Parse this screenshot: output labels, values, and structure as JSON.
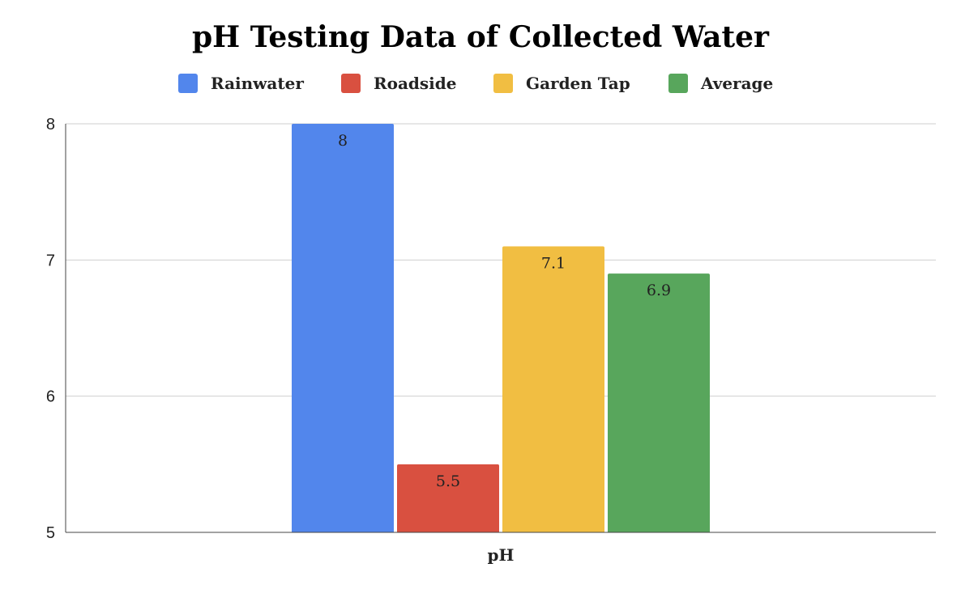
{
  "chart_data": {
    "type": "bar",
    "title": "pH Testing Data of Collected Water",
    "categories": [
      "pH"
    ],
    "series": [
      {
        "name": "Rainwater",
        "values": [
          8
        ],
        "color": "#5286EC"
      },
      {
        "name": "Roadside",
        "values": [
          5.5
        ],
        "color": "#D95040"
      },
      {
        "name": "Garden Tap",
        "values": [
          7.1
        ],
        "color": "#F1BE42"
      },
      {
        "name": "Average",
        "values": [
          6.9
        ],
        "color": "#58A65C"
      }
    ],
    "data_labels": [
      "8",
      "5.5",
      "7.1",
      "6.9"
    ],
    "ylim": [
      5,
      8
    ],
    "y_ticks": [
      "5",
      "6",
      "7",
      "8"
    ],
    "y_tick_values": [
      5,
      6,
      7,
      8
    ],
    "xlabel": "",
    "ylabel": "",
    "grid": true,
    "legend_position": "top"
  }
}
